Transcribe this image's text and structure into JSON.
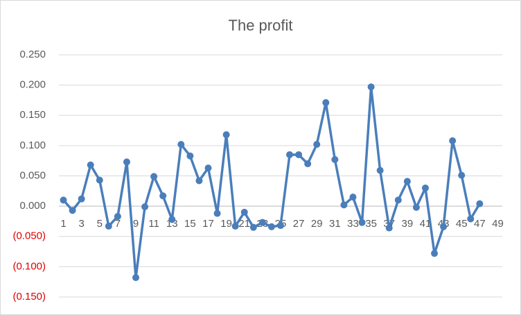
{
  "chart_data": {
    "type": "line",
    "title": "The profit",
    "categories": [
      1,
      null,
      3,
      null,
      5,
      null,
      7,
      null,
      9,
      null,
      11,
      null,
      13,
      null,
      15,
      null,
      17,
      null,
      19,
      null,
      21,
      null,
      23,
      null,
      25,
      null,
      27,
      null,
      29,
      null,
      31,
      null,
      33,
      null,
      35,
      null,
      37,
      null,
      39,
      null,
      41,
      null,
      43,
      null,
      45,
      null,
      47,
      null,
      49
    ],
    "series": [
      {
        "name": "profit",
        "color": "#4a7ebb",
        "values": [
          0.01,
          -0.007,
          0.012,
          0.068,
          0.043,
          -0.033,
          -0.017,
          0.073,
          -0.118,
          -0.001,
          0.049,
          0.017,
          -0.022,
          0.102,
          0.083,
          0.042,
          0.063,
          -0.012,
          0.118,
          -0.033,
          -0.01,
          -0.035,
          -0.027,
          -0.034,
          -0.032,
          0.085,
          0.085,
          0.07,
          0.102,
          0.171,
          0.077,
          0.002,
          0.015,
          -0.027,
          0.197,
          0.059,
          -0.036,
          0.01,
          0.041,
          -0.002,
          0.03,
          -0.078,
          -0.034,
          0.108,
          0.051,
          -0.021,
          0.004,
          null,
          null
        ]
      }
    ],
    "ylim": [
      -0.15,
      0.25
    ],
    "yticks": [
      {
        "value": 0.25,
        "label": "0.250"
      },
      {
        "value": 0.2,
        "label": "0.200"
      },
      {
        "value": 0.15,
        "label": "0.150"
      },
      {
        "value": 0.1,
        "label": "0.100"
      },
      {
        "value": 0.05,
        "label": "0.050"
      },
      {
        "value": 0,
        "label": "0.000"
      },
      {
        "value": -0.05,
        "label": "(0.050)"
      },
      {
        "value": -0.1,
        "label": "(0.100)"
      },
      {
        "value": -0.15,
        "label": "(0.150)"
      }
    ],
    "grid": true,
    "negative_tick_color": "#e00000"
  }
}
